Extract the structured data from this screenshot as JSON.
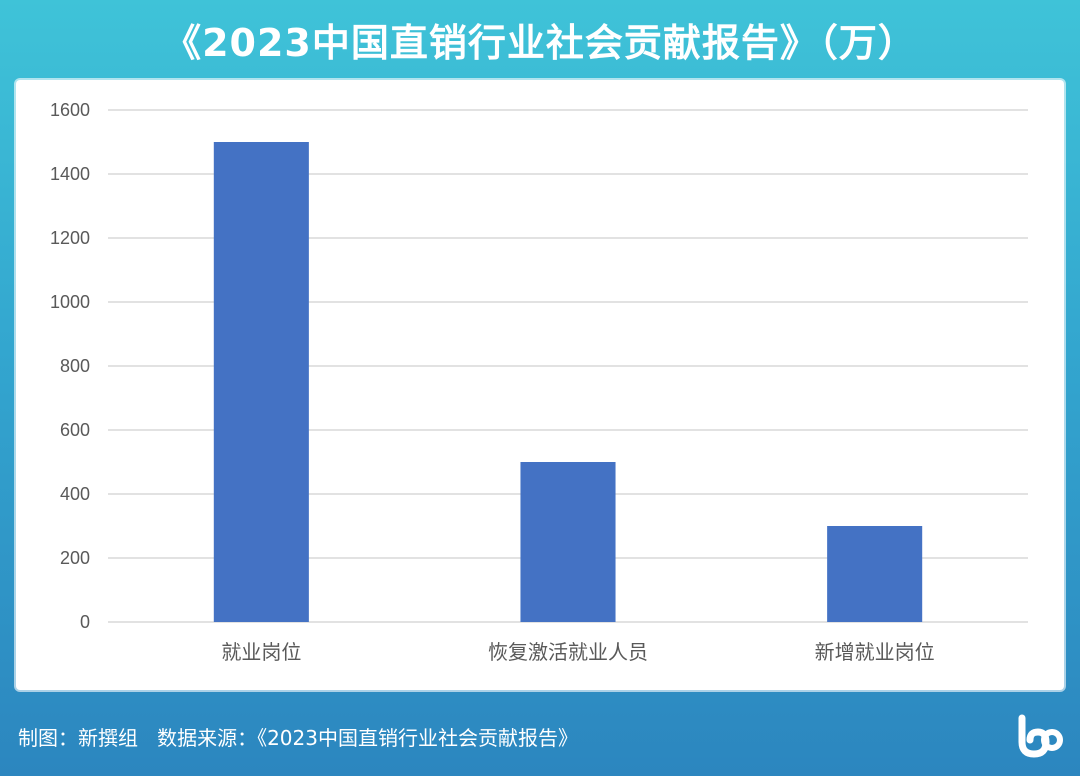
{
  "chart_data": {
    "type": "bar",
    "title": "《2023中国直销行业社会贡献报告》（万）",
    "categories": [
      "就业岗位",
      "恢复激活就业人员",
      "新增就业岗位"
    ],
    "values": [
      1500,
      500,
      300
    ],
    "ylim": [
      0,
      1600
    ],
    "yticks": [
      0,
      200,
      400,
      600,
      800,
      1000,
      1200,
      1400,
      1600
    ],
    "grid": true,
    "legend": "none",
    "bar_color": "#4472c4"
  },
  "footer": {
    "credit": "制图：新撰组",
    "source": "数据来源：《2023中国直销行业社会贡献报告》"
  },
  "logo": {
    "icon": "brand-logo-icon",
    "color": "#ffffff"
  }
}
